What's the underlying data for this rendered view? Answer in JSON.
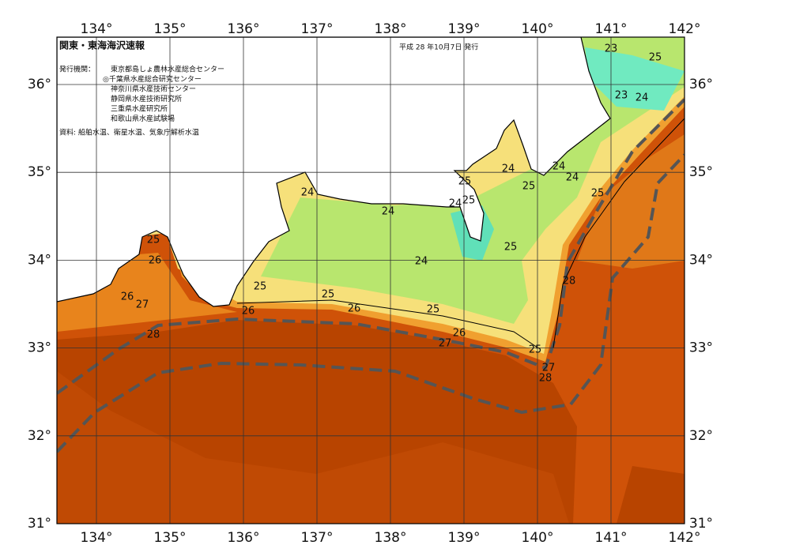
{
  "header": {
    "title": "関東・東海海沢速報",
    "date": "平成 28 年10月7日 発行"
  },
  "issuers": {
    "label": "発行機関：",
    "agencies": [
      "東京都島しょ農林水産総合センター",
      "◎千葉県水産総合研究センター",
      "神奈川県水産技術センター",
      "静岡県水産技術研究所",
      "三重県水産研究所",
      "和歌山県水産試験場"
    ]
  },
  "source": "資料: 船舶水温、衛星水温、気象庁解析水温",
  "map": {
    "lon_ticks": [
      {
        "value": 134,
        "label": "134°"
      },
      {
        "value": 135,
        "label": "135°"
      },
      {
        "value": 136,
        "label": "136°"
      },
      {
        "value": 137,
        "label": "137°"
      },
      {
        "value": 138,
        "label": "138°"
      },
      {
        "value": 139,
        "label": "139°"
      },
      {
        "value": 140,
        "label": "140°"
      },
      {
        "value": 141,
        "label": "141°"
      },
      {
        "value": 142,
        "label": "142°"
      }
    ],
    "lat_ticks": [
      {
        "value": 36,
        "label": "36°"
      },
      {
        "value": 35,
        "label": "35°"
      },
      {
        "value": 34,
        "label": "34°"
      },
      {
        "value": 33,
        "label": "33°"
      },
      {
        "value": 32,
        "label": "32°"
      },
      {
        "value": 31,
        "label": "31°"
      }
    ],
    "contour_labels": [
      23,
      25,
      23,
      24,
      24,
      24,
      25,
      24,
      25,
      25,
      24,
      25,
      24,
      24,
      25,
      26,
      25,
      24,
      28,
      25,
      25,
      26,
      27,
      26,
      25,
      26,
      26,
      28,
      27,
      25,
      27,
      28
    ]
  }
}
